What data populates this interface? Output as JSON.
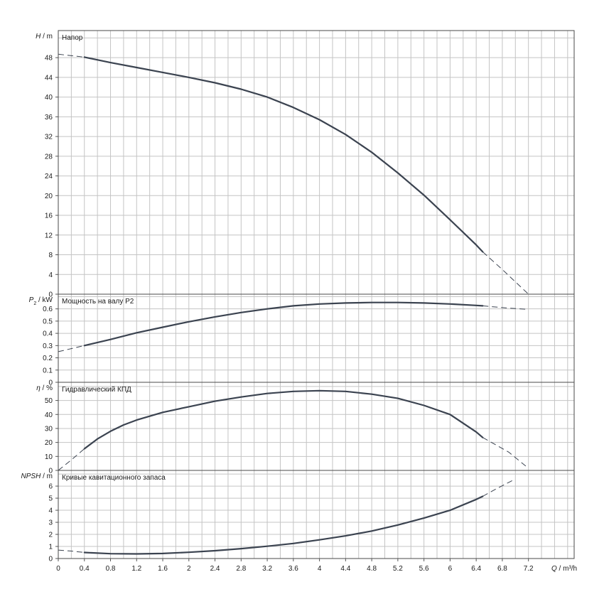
{
  "chart_data": {
    "type": "line",
    "x_axis": {
      "label_var": "Q",
      "label_unit": " / m³/h",
      "lim": [
        0,
        7.9
      ],
      "ticks": [
        0,
        0.4,
        0.8,
        1.2,
        1.6,
        2,
        2.4,
        2.8,
        3.2,
        3.6,
        4,
        4.4,
        4.8,
        5.2,
        5.6,
        6,
        6.4,
        6.8,
        7.2
      ],
      "tick_labels": [
        "0",
        "0.4",
        "0.8",
        "1.2",
        "1.6",
        "2",
        "2.4",
        "2.8",
        "3.2",
        "3.6",
        "4",
        "4.4",
        "4.8",
        "5.2",
        "5.6",
        "6",
        "6.4",
        "6.8",
        "7.2"
      ],
      "grid_step": 0.2
    },
    "grid": true,
    "panels": [
      {
        "id": "head",
        "title": "Напор",
        "ylabel_var": "H",
        "ylabel_unit": " / m",
        "ylim": [
          0,
          53.5
        ],
        "ticks": [
          0,
          4,
          8,
          12,
          16,
          20,
          24,
          28,
          32,
          36,
          40,
          44,
          48
        ],
        "grid_step": 4,
        "solid": [
          [
            0.4,
            48.1
          ],
          [
            0.8,
            47.0
          ],
          [
            1.2,
            46.0
          ],
          [
            1.6,
            45.0
          ],
          [
            2.0,
            44.0
          ],
          [
            2.4,
            42.9
          ],
          [
            2.8,
            41.6
          ],
          [
            3.2,
            40.0
          ],
          [
            3.6,
            37.9
          ],
          [
            4.0,
            35.4
          ],
          [
            4.4,
            32.4
          ],
          [
            4.8,
            28.8
          ],
          [
            5.2,
            24.6
          ],
          [
            5.6,
            20.1
          ],
          [
            6.0,
            15.1
          ],
          [
            6.4,
            10.0
          ],
          [
            6.5,
            8.6
          ]
        ],
        "dashed": [
          [
            [
              0,
              48.7
            ],
            [
              0.4,
              48.1
            ]
          ],
          [
            [
              6.5,
              8.6
            ],
            [
              6.8,
              5.0
            ],
            [
              7.2,
              0.0
            ]
          ]
        ]
      },
      {
        "id": "power",
        "title": "Мощность на валу P2",
        "ylabel_var": "P",
        "ylabel_sub": "2",
        "ylabel_unit": " / kW",
        "ylim": [
          0,
          0.72
        ],
        "ticks": [
          0,
          0.1,
          0.2,
          0.3,
          0.4,
          0.5,
          0.6
        ],
        "tick_labels": [
          "0",
          "0.1",
          "0.2",
          "0.3",
          "0.4",
          "0.5",
          "0.6"
        ],
        "grid_step": 0.1,
        "solid": [
          [
            0.4,
            0.3
          ],
          [
            0.8,
            0.35
          ],
          [
            1.2,
            0.405
          ],
          [
            1.6,
            0.45
          ],
          [
            2.0,
            0.495
          ],
          [
            2.4,
            0.535
          ],
          [
            2.8,
            0.57
          ],
          [
            3.2,
            0.6
          ],
          [
            3.6,
            0.625
          ],
          [
            4.0,
            0.64
          ],
          [
            4.4,
            0.648
          ],
          [
            4.8,
            0.652
          ],
          [
            5.2,
            0.652
          ],
          [
            5.6,
            0.648
          ],
          [
            6.0,
            0.64
          ],
          [
            6.4,
            0.628
          ],
          [
            6.5,
            0.625
          ]
        ],
        "dashed": [
          [
            [
              0,
              0.25
            ],
            [
              0.4,
              0.3
            ]
          ],
          [
            [
              6.5,
              0.625
            ],
            [
              6.8,
              0.61
            ],
            [
              7.2,
              0.595
            ]
          ]
        ]
      },
      {
        "id": "efficiency",
        "title": "Гидравлический КПД",
        "ylabel_var": "η",
        "ylabel_unit": " / %",
        "ylim": [
          0,
          63
        ],
        "ticks": [
          0,
          10,
          20,
          30,
          40,
          50
        ],
        "tick_labels": [
          "0",
          "10",
          "20",
          "30",
          "40",
          "50"
        ],
        "grid_step": 10,
        "solid": [
          [
            0.4,
            15.5
          ],
          [
            0.6,
            22.5
          ],
          [
            0.8,
            28.0
          ],
          [
            1.0,
            32.5
          ],
          [
            1.2,
            36.0
          ],
          [
            1.6,
            41.5
          ],
          [
            2.0,
            45.5
          ],
          [
            2.4,
            49.5
          ],
          [
            2.8,
            52.5
          ],
          [
            3.2,
            55.0
          ],
          [
            3.6,
            56.5
          ],
          [
            4.0,
            57.0
          ],
          [
            4.4,
            56.5
          ],
          [
            4.8,
            54.5
          ],
          [
            5.2,
            51.5
          ],
          [
            5.6,
            46.5
          ],
          [
            6.0,
            40.0
          ],
          [
            6.4,
            27.5
          ],
          [
            6.5,
            23.5
          ]
        ],
        "dashed": [
          [
            [
              0,
              0
            ],
            [
              0.2,
              7.5
            ],
            [
              0.4,
              15.5
            ]
          ],
          [
            [
              6.5,
              23.5
            ],
            [
              6.9,
              13.0
            ],
            [
              7.2,
              1.5
            ]
          ]
        ]
      },
      {
        "id": "npsh",
        "title": "Кривые кавитационного запаса",
        "ylabel_var": "NPSH",
        "ylabel_unit": " / m",
        "ylim": [
          0,
          7.3
        ],
        "ticks": [
          0,
          1,
          2,
          3,
          4,
          5,
          6
        ],
        "tick_labels": [
          "0",
          "1",
          "2",
          "3",
          "4",
          "5",
          "6"
        ],
        "grid_step": 1,
        "solid": [
          [
            0.4,
            0.5
          ],
          [
            0.8,
            0.4
          ],
          [
            1.2,
            0.38
          ],
          [
            1.6,
            0.42
          ],
          [
            2.0,
            0.52
          ],
          [
            2.4,
            0.65
          ],
          [
            2.8,
            0.82
          ],
          [
            3.2,
            1.02
          ],
          [
            3.6,
            1.25
          ],
          [
            4.0,
            1.55
          ],
          [
            4.4,
            1.88
          ],
          [
            4.8,
            2.28
          ],
          [
            5.2,
            2.78
          ],
          [
            5.6,
            3.35
          ],
          [
            6.0,
            4.0
          ],
          [
            6.4,
            4.9
          ],
          [
            6.5,
            5.15
          ]
        ],
        "dashed": [
          [
            [
              0,
              0.7
            ],
            [
              0.2,
              0.62
            ],
            [
              0.4,
              0.5
            ]
          ],
          [
            [
              6.5,
              5.15
            ],
            [
              6.7,
              5.75
            ],
            [
              6.95,
              6.45
            ]
          ]
        ]
      }
    ]
  }
}
